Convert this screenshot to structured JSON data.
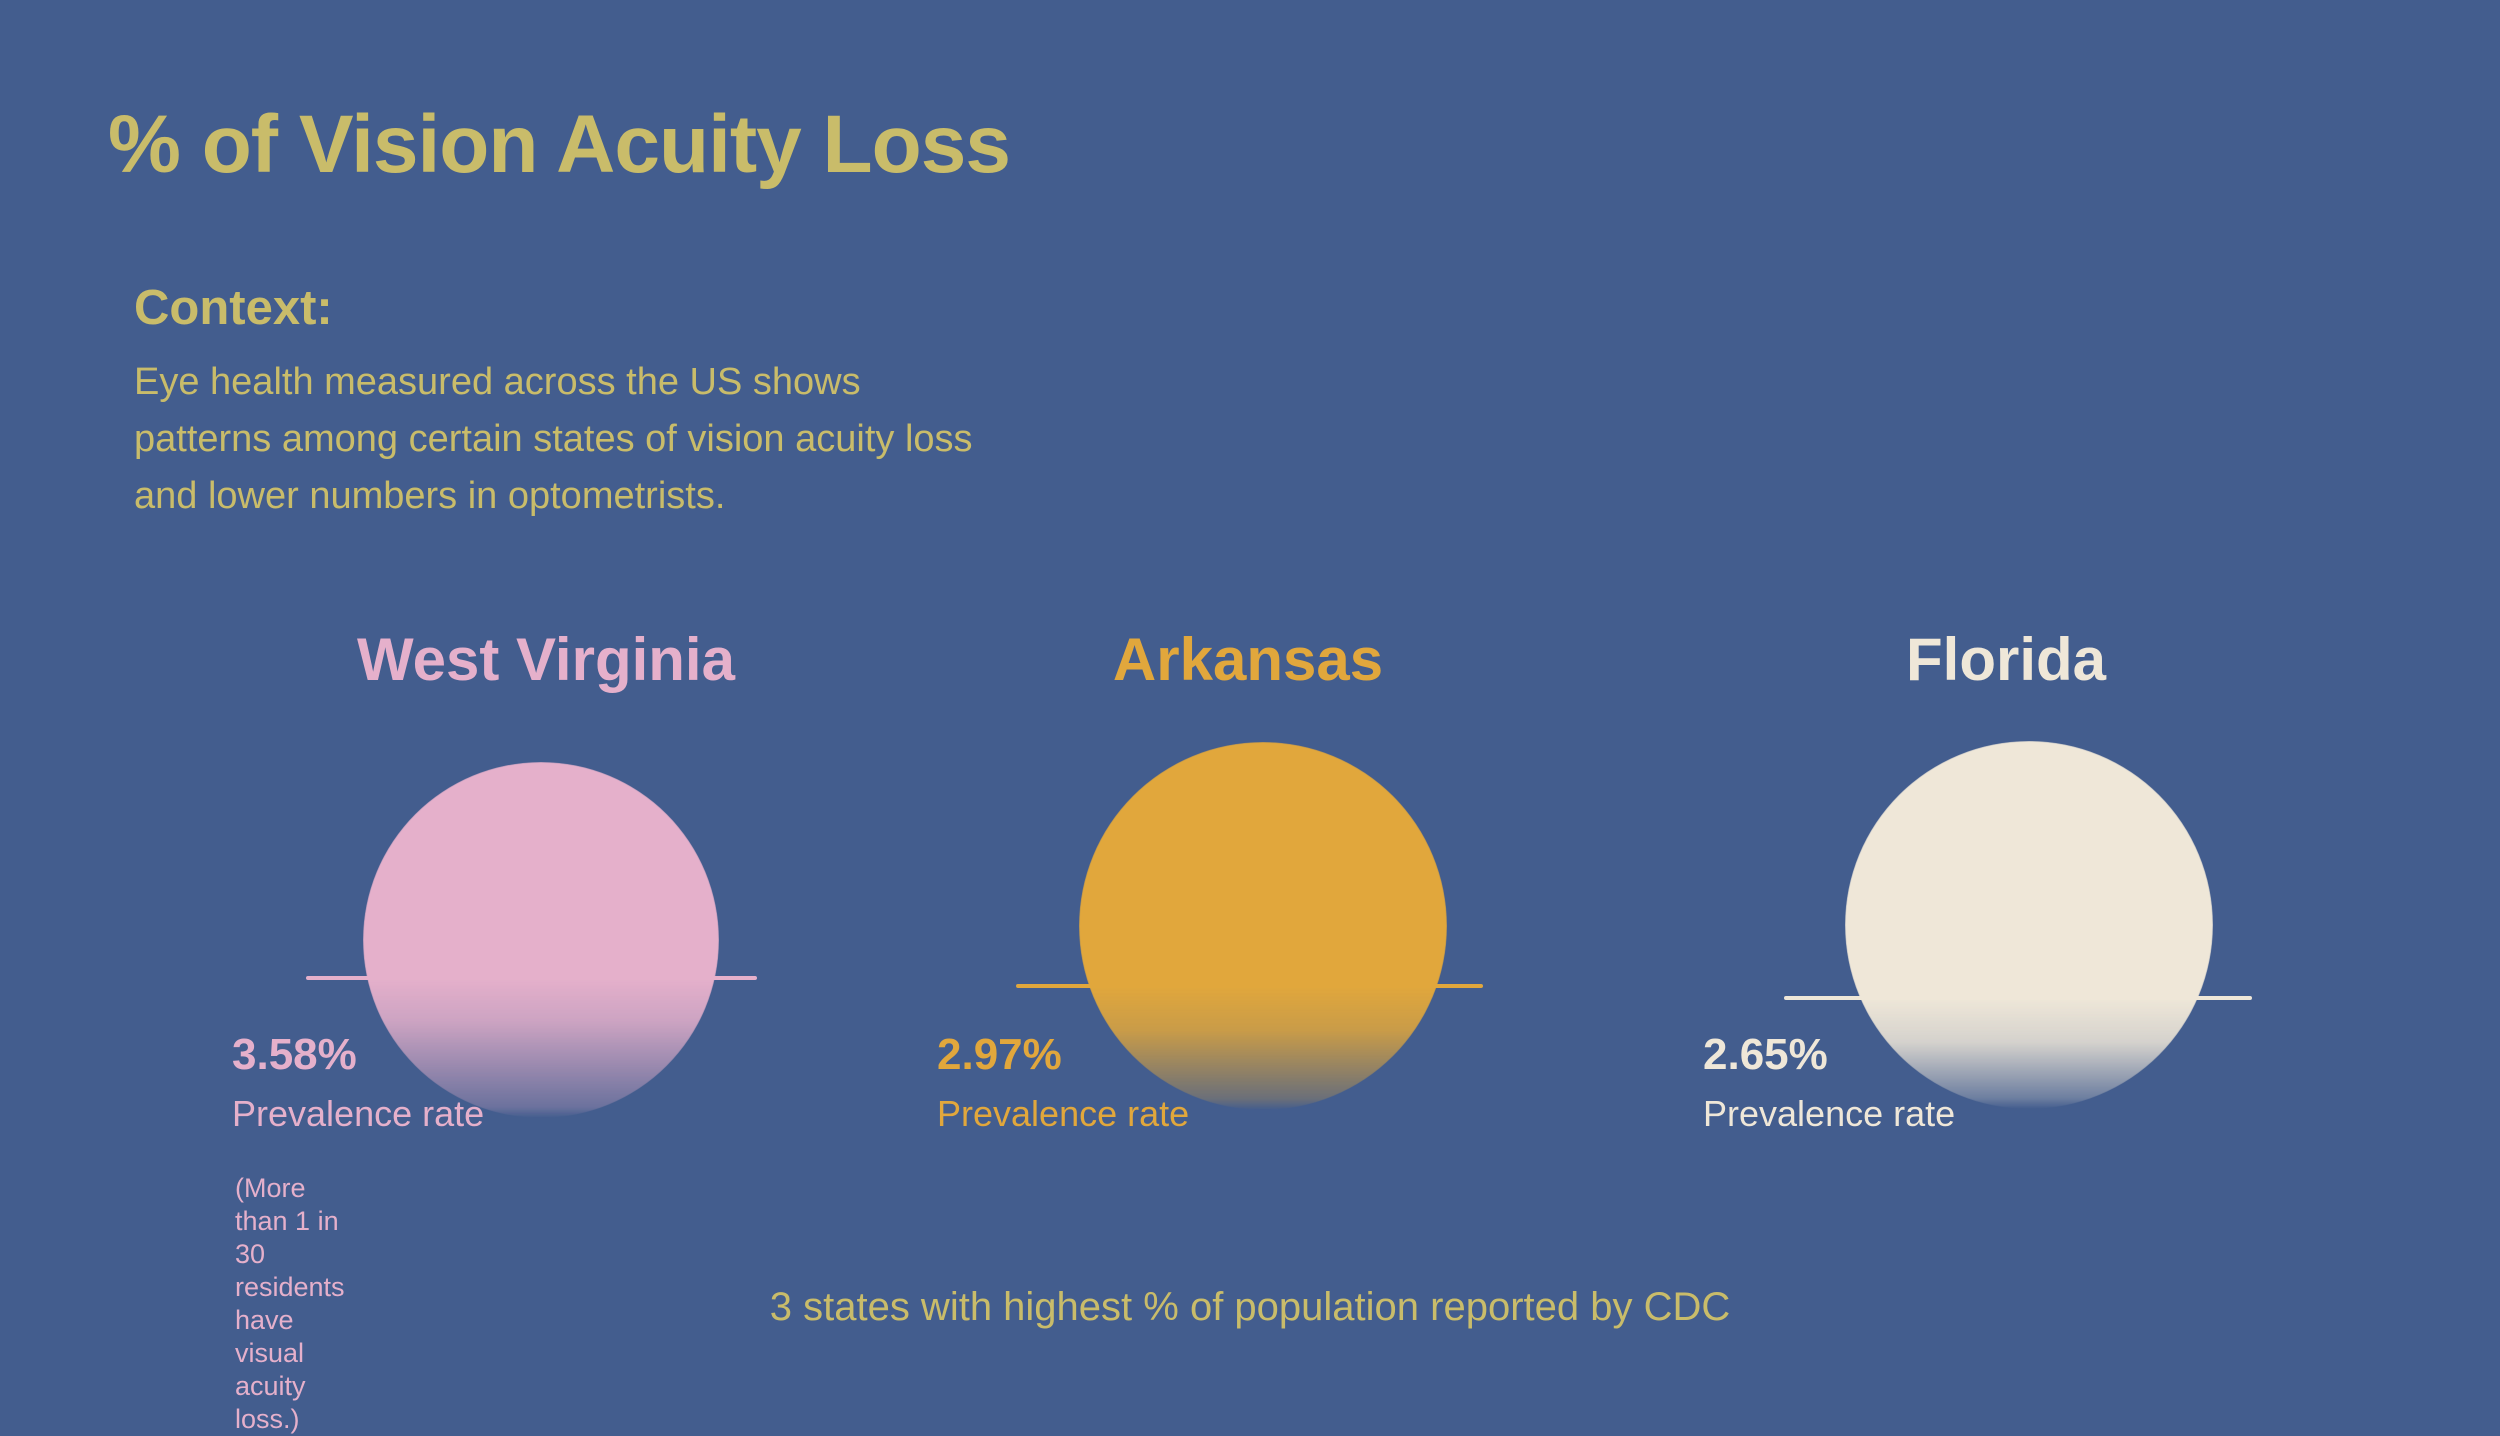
{
  "colors": {
    "background": "#435d8e",
    "accent_olive": "#c9bc6a",
    "pink": "#e5b0cb",
    "orange": "#e1a73c",
    "cream": "#efe7d8"
  },
  "title": "% of Vision Acuity Loss",
  "context": {
    "heading": "Context:",
    "body": "Eye health measured across the US shows\npatterns among certain states of vision acuity loss\nand lower numbers in optometrists."
  },
  "states": [
    {
      "name": "West Virginia",
      "rate": "3.58%",
      "rate_value": 3.58,
      "rate_label": "Prevalence rate",
      "note": "(More than 1 in 30\nresidents have\nvisual acuity loss.)",
      "color": "#e5b0cb"
    },
    {
      "name": "Arkansas",
      "rate": "2.97%",
      "rate_value": 2.97,
      "rate_label": "Prevalence rate",
      "color": "#e1a73c"
    },
    {
      "name": "Florida",
      "rate": "2.65%",
      "rate_value": 2.65,
      "rate_label": "Prevalence rate",
      "color": "#efe7d8"
    }
  ],
  "footer": "3 states with highest % of population reported by CDC"
}
